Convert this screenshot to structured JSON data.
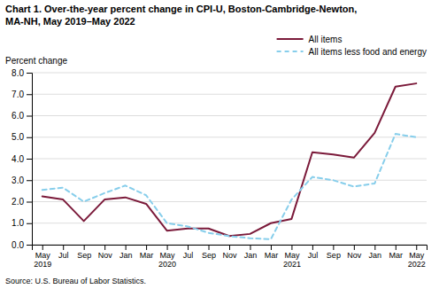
{
  "chart_data": {
    "type": "line",
    "title": "Chart 1. Over-the-year percent change in CPI-U, Boston-Cambridge-Newton,",
    "subtitle": "MA-NH,  May 2019–May 2022",
    "ylabel": "Percent change",
    "source": "Source: U.S. Bureau of Labor Statistics.",
    "categories": [
      "May\n2019",
      "Jul",
      "Sep",
      "Nov",
      "Jan",
      "Mar",
      "May\n2020",
      "Jul",
      "Sep",
      "Nov",
      "Jan",
      "Mar",
      "May\n2021",
      "Jul",
      "Sep",
      "Nov",
      "Jan",
      "Mar",
      "May\n2022"
    ],
    "series": [
      {
        "name": "All items",
        "color": "#7B1A3A",
        "line_style": "solid",
        "values": [
          2.25,
          2.1,
          1.1,
          2.1,
          2.2,
          1.9,
          0.65,
          0.75,
          0.75,
          0.4,
          0.5,
          1.0,
          1.2,
          4.3,
          4.2,
          4.05,
          5.2,
          7.35,
          7.5
        ]
      },
      {
        "name": "All items less food and energy",
        "color": "#87CEEB",
        "line_style": "dashed",
        "values": [
          2.55,
          2.65,
          2.0,
          2.4,
          2.75,
          2.3,
          1.0,
          0.85,
          0.55,
          0.4,
          0.3,
          0.25,
          2.1,
          3.15,
          3.0,
          2.7,
          2.85,
          5.15,
          5.0
        ]
      }
    ],
    "ylim": [
      0.0,
      8.0
    ],
    "yticks": [
      {
        "value": 0.0,
        "label": "0.0"
      },
      {
        "value": 1.0,
        "label": "1.0"
      },
      {
        "value": 2.0,
        "label": "2.0"
      },
      {
        "value": 3.0,
        "label": "3.0"
      },
      {
        "value": 4.0,
        "label": "4.0"
      },
      {
        "value": 5.0,
        "label": "5.0"
      },
      {
        "value": 6.0,
        "label": "6.0"
      },
      {
        "value": 7.0,
        "label": "7.0"
      },
      {
        "value": 8.0,
        "label": "8.0"
      }
    ],
    "grid": true,
    "legend": "top-right"
  }
}
